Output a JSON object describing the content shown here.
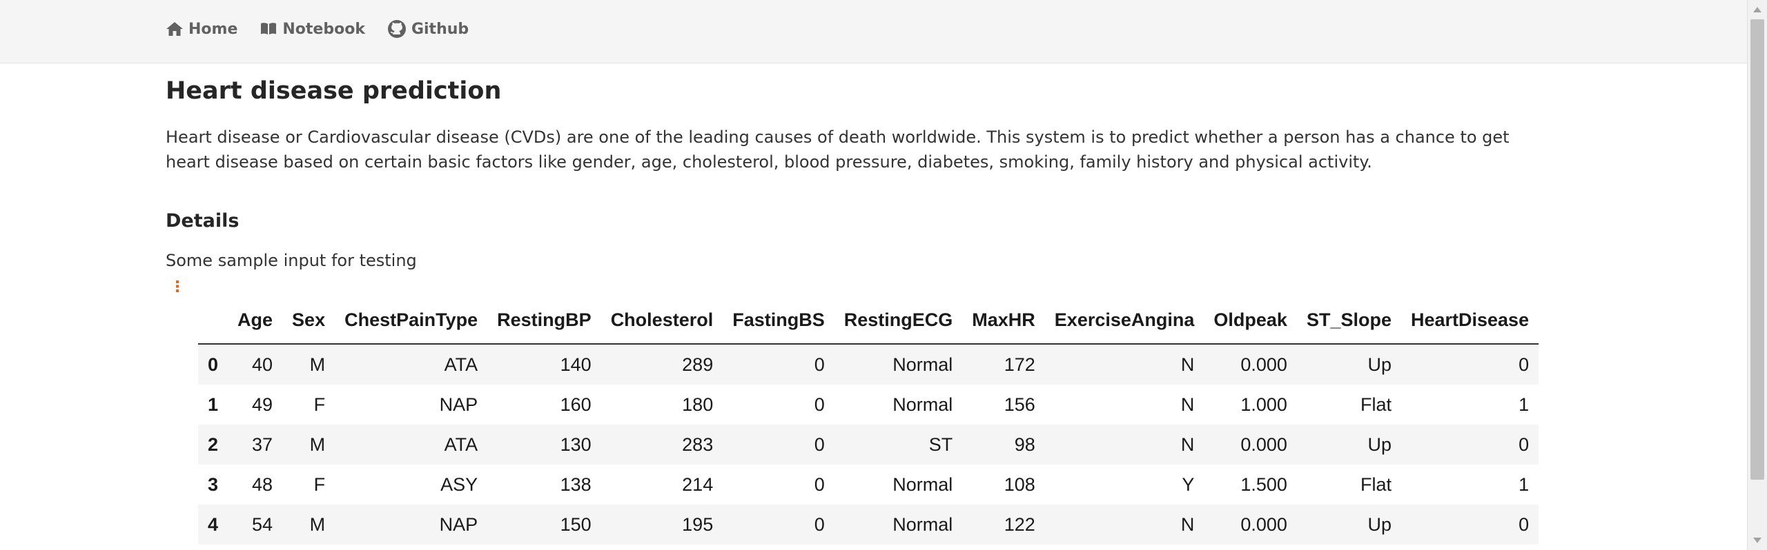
{
  "nav": {
    "items": [
      {
        "label": "Home",
        "icon": "home-icon"
      },
      {
        "label": "Notebook",
        "icon": "book-icon"
      },
      {
        "label": "Github",
        "icon": "github-icon"
      }
    ]
  },
  "page": {
    "title": "Heart disease prediction",
    "intro": "Heart disease or Cardiovascular disease (CVDs) are one of the leading causes of death worldwide. This system is to predict whether a person has a chance to get heart disease based on certain basic factors like gender, age, cholesterol, blood pressure, diabetes, smoking, family history and physical activity.",
    "details_heading": "Details",
    "sample_text": "Some sample input for testing",
    "menu_glyph": "⋮",
    "accent_color": "#e8601c"
  },
  "table": {
    "columns": [
      "",
      "Age",
      "Sex",
      "ChestPainType",
      "RestingBP",
      "Cholesterol",
      "FastingBS",
      "RestingECG",
      "MaxHR",
      "ExerciseAngina",
      "Oldpeak",
      "ST_Slope",
      "HeartDisease"
    ],
    "rows": [
      [
        "0",
        "40",
        "M",
        "ATA",
        "140",
        "289",
        "0",
        "Normal",
        "172",
        "N",
        "0.000",
        "Up",
        "0"
      ],
      [
        "1",
        "49",
        "F",
        "NAP",
        "160",
        "180",
        "0",
        "Normal",
        "156",
        "N",
        "1.000",
        "Flat",
        "1"
      ],
      [
        "2",
        "37",
        "M",
        "ATA",
        "130",
        "283",
        "0",
        "ST",
        "98",
        "N",
        "0.000",
        "Up",
        "0"
      ],
      [
        "3",
        "48",
        "F",
        "ASY",
        "138",
        "214",
        "0",
        "Normal",
        "108",
        "Y",
        "1.500",
        "Flat",
        "1"
      ],
      [
        "4",
        "54",
        "M",
        "NAP",
        "150",
        "195",
        "0",
        "Normal",
        "122",
        "N",
        "0.000",
        "Up",
        "0"
      ]
    ]
  }
}
